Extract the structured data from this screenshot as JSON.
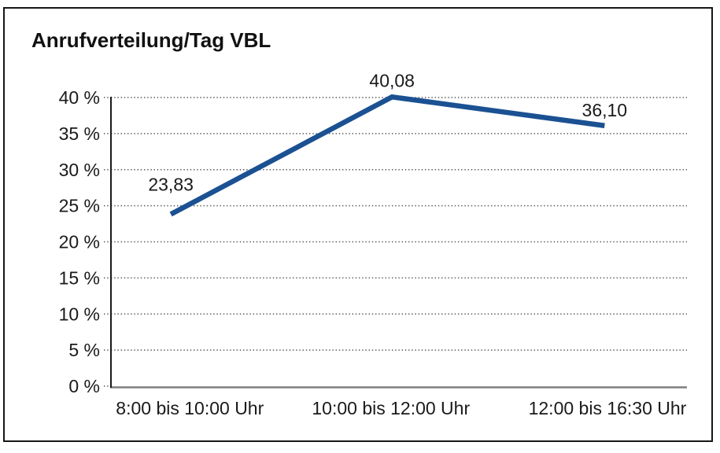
{
  "chart_data": {
    "type": "line",
    "title": "Anrufverteilung/Tag VBL",
    "categories": [
      "8:00 bis 10:00 Uhr",
      "10:00 bis 12:00 Uhr",
      "12:00 bis 16:30 Uhr"
    ],
    "values": [
      23.83,
      40.08,
      36.1
    ],
    "value_labels": [
      "23,83",
      "40,08",
      "36,10"
    ],
    "xlabel": "",
    "ylabel": "",
    "ylim": [
      0,
      40
    ],
    "y_ticks": [
      0,
      5,
      10,
      15,
      20,
      25,
      30,
      35,
      40
    ],
    "y_tick_labels": [
      "0 %",
      "5 %",
      "10 %",
      "15 %",
      "20 %",
      "25 %",
      "30 %",
      "35 %",
      "40 %"
    ],
    "grid": "horizontal-dotted",
    "legend_position": "none",
    "colors": {
      "line": "#1b5192",
      "grid": "#565656",
      "axis": "#1a1a1a",
      "baseline": "#7f7f7f",
      "text": "#1a1a1a",
      "frame": "#161616",
      "background": "#ffffff"
    }
  }
}
